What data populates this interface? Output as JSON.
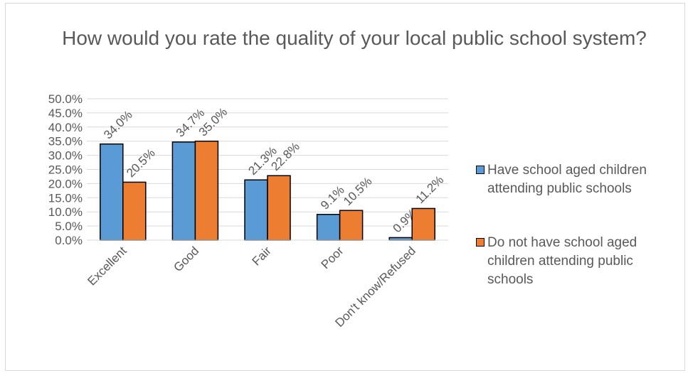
{
  "chart_data": {
    "type": "bar",
    "title": "How would you rate the quality of your local public school system?",
    "categories": [
      "Excellent",
      "Good",
      "Fair",
      "Poor",
      "Don't know/Refused"
    ],
    "series": [
      {
        "name": "Have school aged children attending public schools",
        "values": [
          34.0,
          34.7,
          21.3,
          9.1,
          0.9
        ],
        "labels": [
          "34.0%",
          "34.7%",
          "21.3%",
          "9.1%",
          "0.9%"
        ],
        "color": "#5B9BD5"
      },
      {
        "name": "Do not have school aged children attending public schools",
        "values": [
          20.5,
          35.0,
          22.8,
          10.5,
          11.2
        ],
        "labels": [
          "20.5%",
          "35.0%",
          "22.8%",
          "10.5%",
          "11.2%"
        ],
        "color": "#ED7D31"
      }
    ],
    "ylim": [
      0,
      50
    ],
    "yticks": [
      "0.0%",
      "5.0%",
      "10.0%",
      "15.0%",
      "20.0%",
      "25.0%",
      "30.0%",
      "35.0%",
      "40.0%",
      "45.0%",
      "50.0%"
    ],
    "grid": true,
    "legend_position": "right"
  },
  "legend": {
    "items": [
      {
        "lines": [
          "Have school aged children",
          "attending public schools"
        ]
      },
      {
        "lines": [
          "Do not have school aged",
          "children attending public",
          "schools"
        ]
      }
    ]
  }
}
